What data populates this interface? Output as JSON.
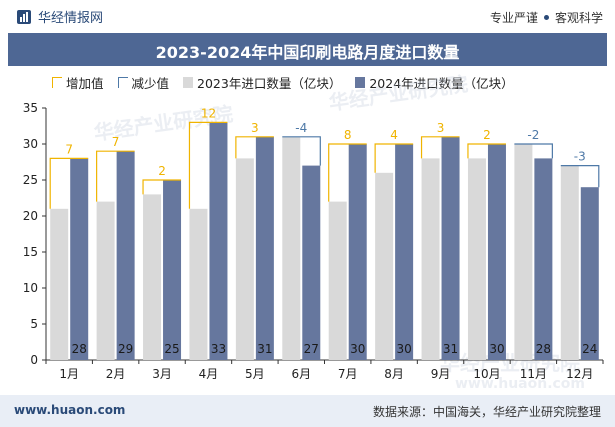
{
  "header": {
    "brand": "华经情报网",
    "tag1": "专业严谨",
    "tag2": "客观科学"
  },
  "footer": {
    "website": "www.huaon.com",
    "source": "数据来源：中国海关，华经产业研究院整理"
  },
  "watermark": {
    "text1": "华经产业研究院",
    "text2": "www.huaon.com"
  },
  "colors": {
    "title_bg": "#4e6794",
    "series_2023": "#d9d9d9",
    "series_2024": "#66779e",
    "increase": "#f0b400",
    "decrease": "#4e79a7"
  },
  "chart_data": {
    "type": "bar",
    "title": "2023-2024年中国印刷电路月度进口数量",
    "legend": [
      "增加值",
      "减少值",
      "2023年进口数量（亿块）",
      "2024年进口数量（亿块）"
    ],
    "legend_position": "top",
    "categories": [
      "1月",
      "2月",
      "3月",
      "4月",
      "5月",
      "6月",
      "7月",
      "8月",
      "9月",
      "10月",
      "11月",
      "12月"
    ],
    "series": [
      {
        "name": "2023年进口数量（亿块）",
        "values": [
          21,
          22,
          23,
          21,
          28,
          31,
          22,
          26,
          28,
          28,
          30,
          27
        ]
      },
      {
        "name": "2024年进口数量（亿块）",
        "values": [
          28,
          29,
          25,
          33,
          31,
          27,
          30,
          30,
          31,
          30,
          28,
          24
        ]
      }
    ],
    "change_labels": [
      "7",
      "7",
      "2",
      "12",
      "3",
      "-4",
      "8",
      "4",
      "3",
      "2",
      "-2",
      "-3"
    ],
    "bar_labels": [
      "28",
      "29",
      "25",
      "33",
      "31",
      "27",
      "30",
      "30",
      "31",
      "30",
      "28",
      "24"
    ],
    "y_ticks": [
      "0",
      "5",
      "10",
      "15",
      "20",
      "25",
      "30",
      "35"
    ],
    "ylim": [
      0,
      35
    ],
    "grid": false
  }
}
